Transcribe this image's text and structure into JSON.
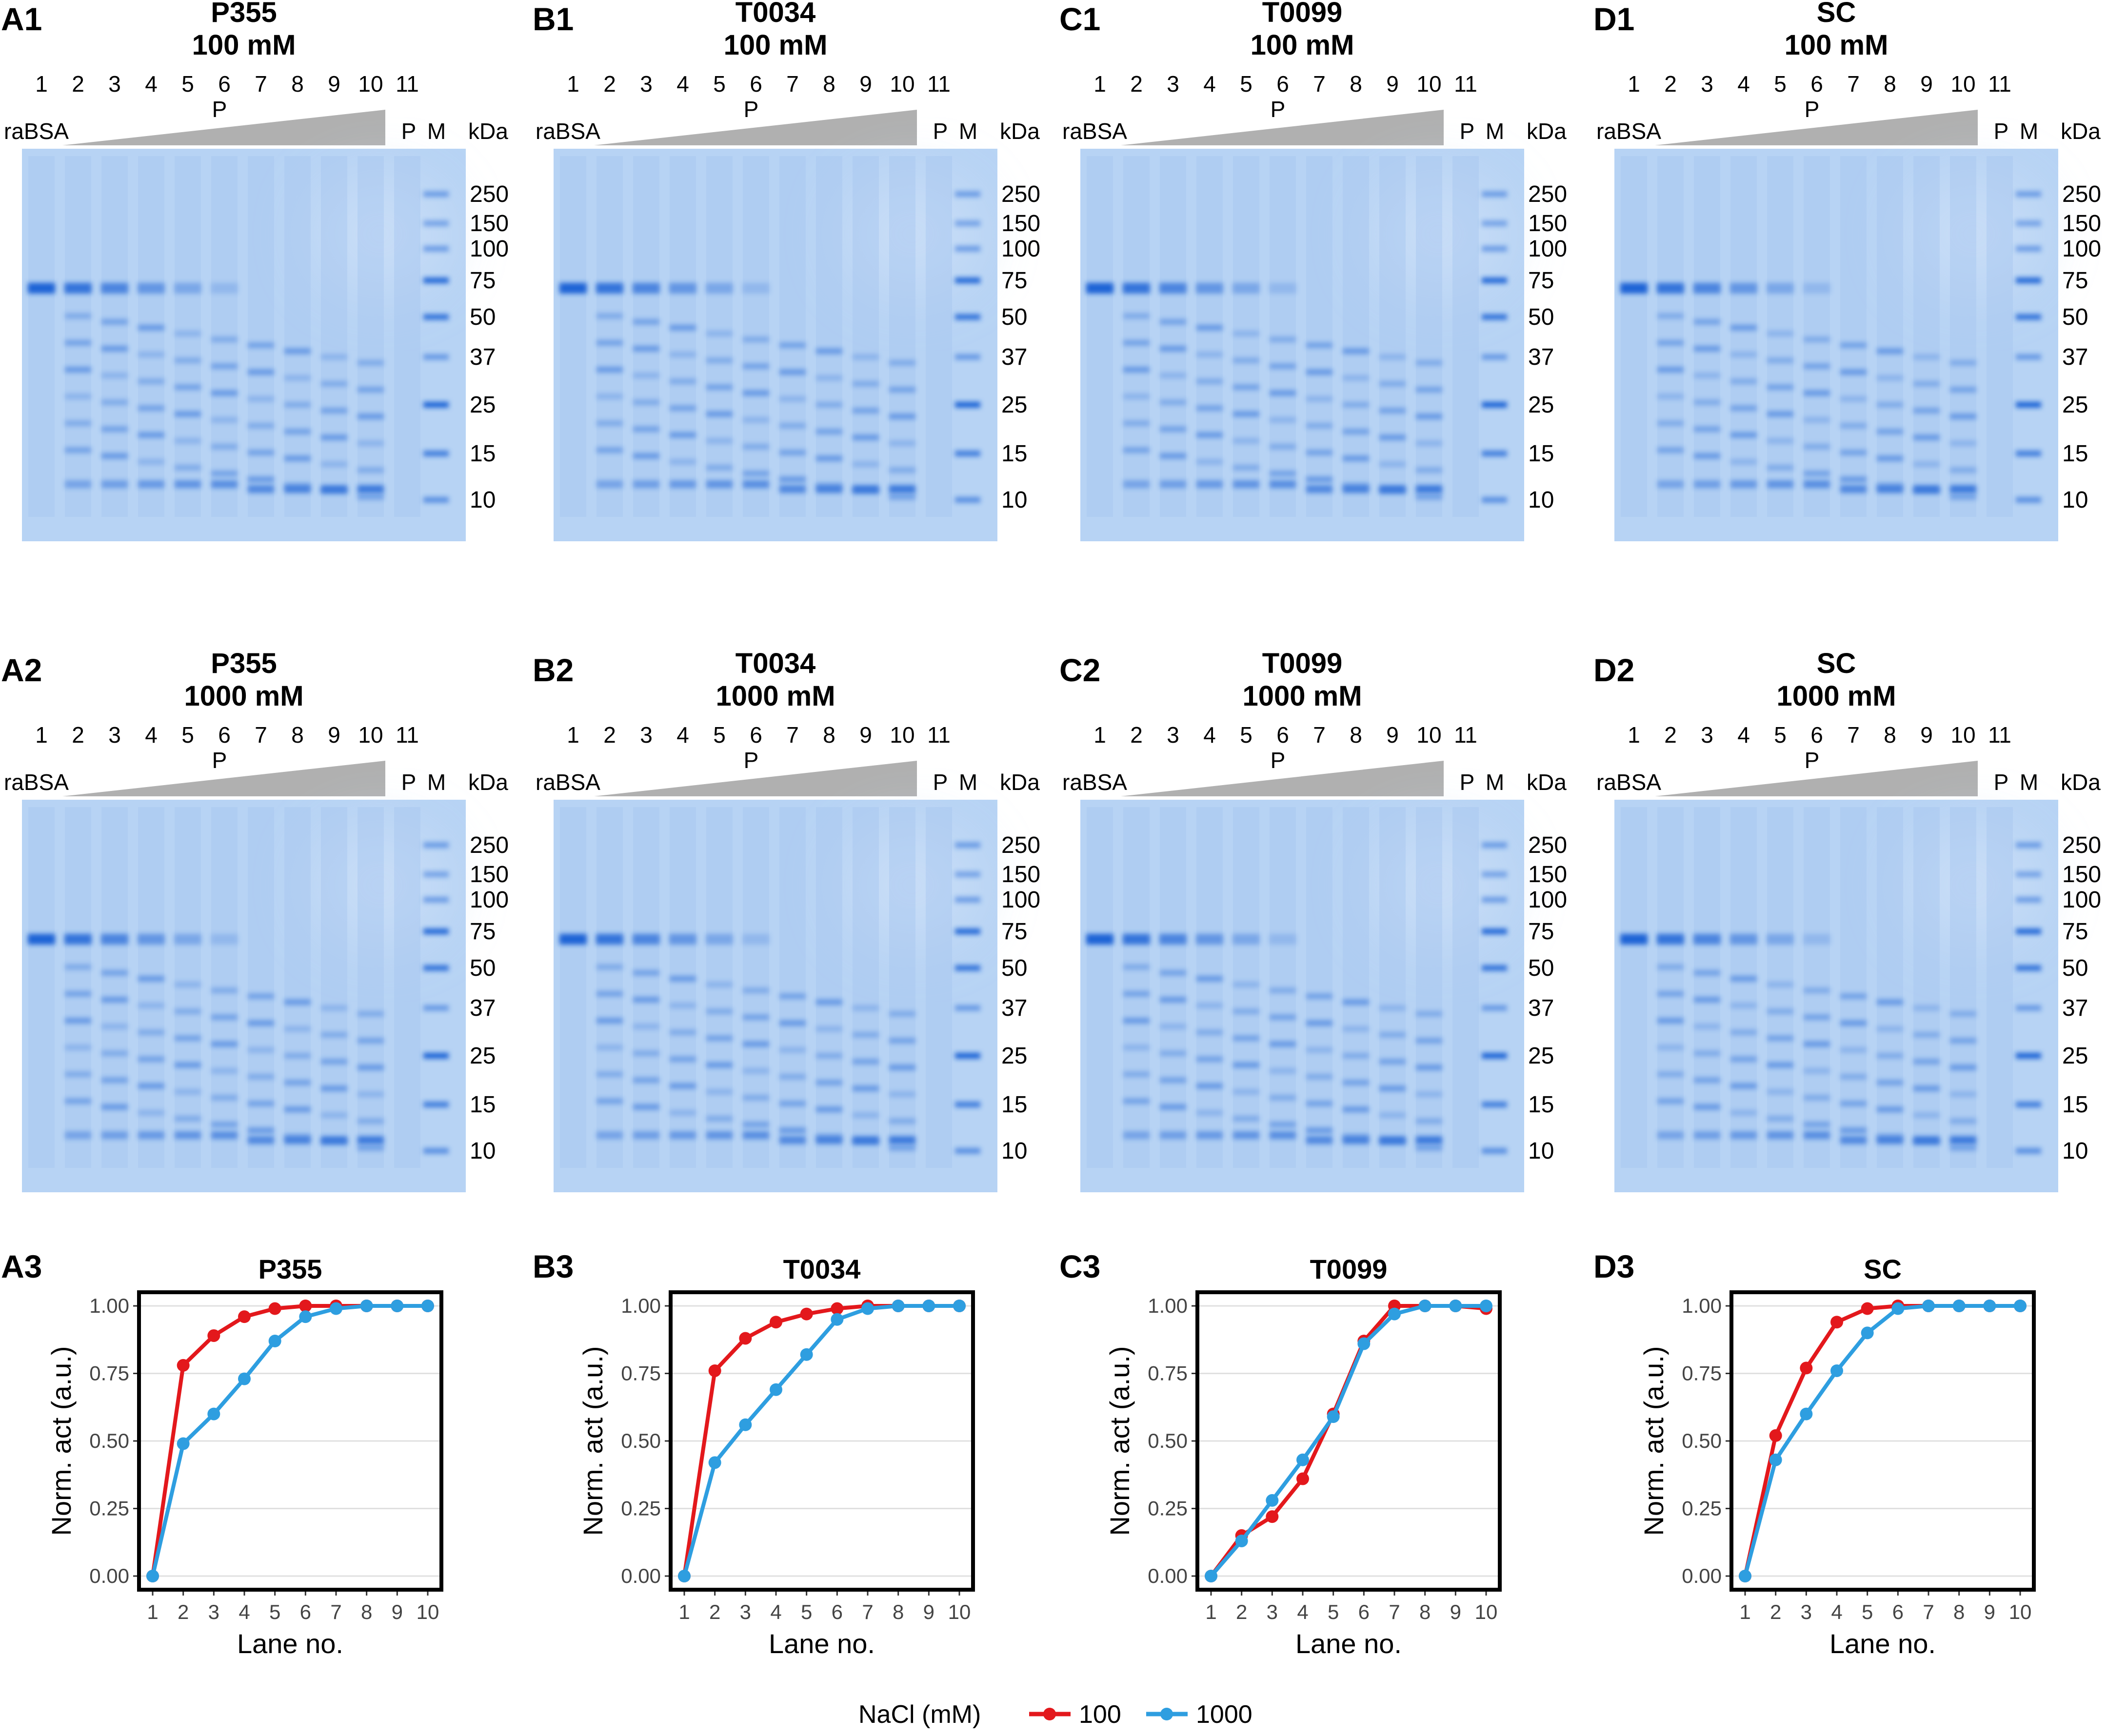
{
  "figure": {
    "gel_lane_numbers": [
      "1",
      "2",
      "3",
      "4",
      "5",
      "6",
      "7",
      "8",
      "9",
      "10",
      "11"
    ],
    "gel_labels": {
      "rabsa": "raBSA",
      "p": "P",
      "m": "M",
      "kda": "kDa"
    },
    "marker_kda": [
      "250",
      "150",
      "100",
      "75",
      "50",
      "37",
      "25",
      "15",
      "10"
    ],
    "gels": [
      {
        "label": "A1",
        "name": "P355",
        "salt": "100 mM"
      },
      {
        "label": "B1",
        "name": "T0034",
        "salt": "100 mM"
      },
      {
        "label": "C1",
        "name": "T0099",
        "salt": "100 mM"
      },
      {
        "label": "D1",
        "name": "SC",
        "salt": "100 mM"
      },
      {
        "label": "A2",
        "name": "P355",
        "salt": "1000 mM"
      },
      {
        "label": "B2",
        "name": "T0034",
        "salt": "1000 mM"
      },
      {
        "label": "C2",
        "name": "T0099",
        "salt": "1000 mM"
      },
      {
        "label": "D2",
        "name": "SC",
        "salt": "1000 mM"
      }
    ],
    "colors": {
      "gel_bg": "#b7d3f4",
      "band": "#1f63d6",
      "s100": "#e3181c",
      "s1000": "#2e9ee0"
    }
  },
  "chart_data": [
    {
      "type": "line",
      "panel": "A3",
      "title": "P355",
      "xlabel": "Lane no.",
      "ylabel": "Norm. act (a.u.)",
      "x": [
        1,
        2,
        3,
        4,
        5,
        6,
        7,
        8,
        9,
        10
      ],
      "xlim": [
        1,
        10
      ],
      "ylim": [
        0,
        1
      ],
      "yticks": [
        "0.00",
        "0.25",
        "0.50",
        "0.75",
        "1.00"
      ],
      "series": [
        {
          "name": "100",
          "values": [
            0,
            0.78,
            0.89,
            0.96,
            0.99,
            1,
            1,
            1,
            1,
            1
          ]
        },
        {
          "name": "1000",
          "values": [
            0,
            0.49,
            0.6,
            0.73,
            0.87,
            0.96,
            0.99,
            1,
            1,
            1
          ]
        }
      ]
    },
    {
      "type": "line",
      "panel": "B3",
      "title": "T0034",
      "xlabel": "Lane no.",
      "ylabel": "Norm. act (a.u.)",
      "x": [
        1,
        2,
        3,
        4,
        5,
        6,
        7,
        8,
        9,
        10
      ],
      "xlim": [
        1,
        10
      ],
      "ylim": [
        0,
        1
      ],
      "yticks": [
        "0.00",
        "0.25",
        "0.50",
        "0.75",
        "1.00"
      ],
      "series": [
        {
          "name": "100",
          "values": [
            0,
            0.76,
            0.88,
            0.94,
            0.97,
            0.99,
            1,
            1,
            1,
            1
          ]
        },
        {
          "name": "1000",
          "values": [
            0,
            0.42,
            0.56,
            0.69,
            0.82,
            0.95,
            0.99,
            1,
            1,
            1
          ]
        }
      ]
    },
    {
      "type": "line",
      "panel": "C3",
      "title": "T0099",
      "xlabel": "Lane no.",
      "ylabel": "Norm. act (a.u.)",
      "x": [
        1,
        2,
        3,
        4,
        5,
        6,
        7,
        8,
        9,
        10
      ],
      "xlim": [
        1,
        10
      ],
      "ylim": [
        0,
        1
      ],
      "yticks": [
        "0.00",
        "0.25",
        "0.50",
        "0.75",
        "1.00"
      ],
      "series": [
        {
          "name": "100",
          "values": [
            0,
            0.15,
            0.22,
            0.36,
            0.6,
            0.87,
            1,
            1,
            1,
            0.99
          ]
        },
        {
          "name": "1000",
          "values": [
            0,
            0.13,
            0.28,
            0.43,
            0.59,
            0.86,
            0.97,
            1,
            1,
            1
          ]
        }
      ]
    },
    {
      "type": "line",
      "panel": "D3",
      "title": "SC",
      "xlabel": "Lane no.",
      "ylabel": "Norm. act (a.u.)",
      "x": [
        1,
        2,
        3,
        4,
        5,
        6,
        7,
        8,
        9,
        10
      ],
      "xlim": [
        1,
        10
      ],
      "ylim": [
        0,
        1
      ],
      "yticks": [
        "0.00",
        "0.25",
        "0.50",
        "0.75",
        "1.00"
      ],
      "series": [
        {
          "name": "100",
          "values": [
            0,
            0.52,
            0.77,
            0.94,
            0.99,
            1,
            1,
            1,
            1,
            1
          ]
        },
        {
          "name": "1000",
          "values": [
            0,
            0.43,
            0.6,
            0.76,
            0.9,
            0.99,
            1,
            1,
            1,
            1
          ]
        }
      ]
    }
  ],
  "legend": {
    "title": "NaCl (mM)",
    "items": [
      "100",
      "1000"
    ]
  }
}
